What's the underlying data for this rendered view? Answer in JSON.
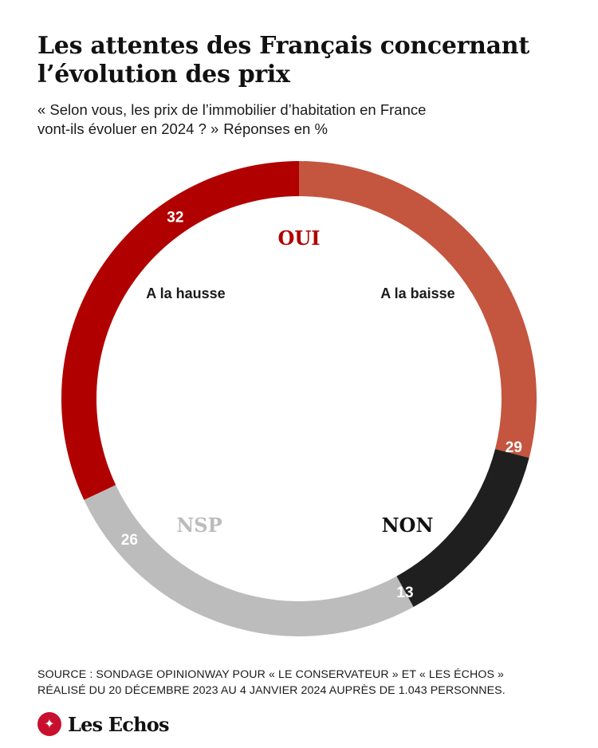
{
  "header": {
    "title_line1": "Les attentes des Français concernant",
    "title_line2": "l’évolution des prix",
    "subtitle_line1": "« Selon vous, les prix de l’immobilier d’habitation en France",
    "subtitle_line2": "vont-ils évoluer en 2024 ? »",
    "subtitle_note": "Réponses en %"
  },
  "chart_data": {
    "type": "pie",
    "subtype": "donut",
    "categories": [
      "A la baisse",
      "NON",
      "NSP",
      "A la hausse"
    ],
    "values": [
      29,
      13,
      26,
      32
    ],
    "value_labels": [
      "29",
      "13",
      "26",
      "32"
    ],
    "colors": [
      "#c4553f",
      "#1f1f1f",
      "#bdbcbc",
      "#b10000"
    ],
    "group_labels": {
      "oui": "OUI",
      "non": "NON",
      "nsp": "NSP"
    },
    "group_colors": {
      "oui": "#b10000",
      "non": "#111111",
      "nsp": "#bdbcbc"
    },
    "start": "top",
    "direction": "clockwise"
  },
  "footer": {
    "source_line1": "SOURCE : SONDAGE OPINIONWAY POUR « LE CONSERVATEUR » ET « LES ÉCHOS »",
    "source_line2": "RÉALISÉ DU 20 DÉCEMBRE 2023 AU 4 JANVIER 2024 AUPRÈS DE 1.043 PERSONNES.",
    "logo_text": "Les Echos"
  }
}
